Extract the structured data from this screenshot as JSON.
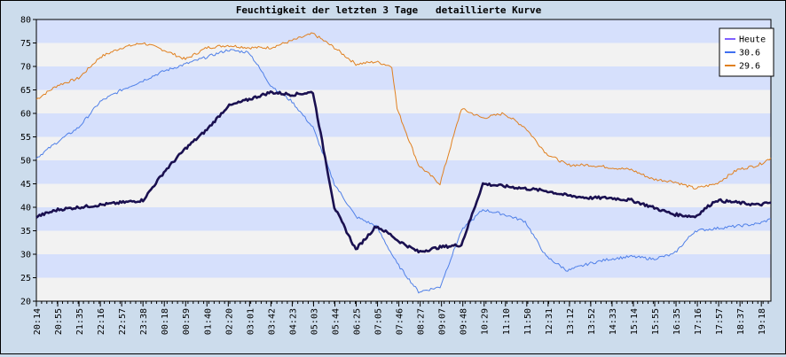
{
  "chart_data": {
    "type": "line",
    "title": "Feuchtigkeit der letzten 3 Tage   detaillierte Kurve",
    "xlabel": "",
    "ylabel": "",
    "ylim": [
      20,
      80
    ],
    "y_ticks": [
      20,
      25,
      30,
      35,
      40,
      45,
      50,
      55,
      60,
      65,
      70,
      75,
      80
    ],
    "x_ticks": [
      "20:14",
      "20:55",
      "21:35",
      "22:16",
      "22:57",
      "23:38",
      "00:18",
      "00:59",
      "01:40",
      "02:20",
      "03:01",
      "03:42",
      "04:23",
      "05:03",
      "05:44",
      "06:25",
      "07:05",
      "07:46",
      "08:27",
      "09:07",
      "09:48",
      "10:29",
      "11:10",
      "11:50",
      "12:31",
      "13:12",
      "13:52",
      "14:33",
      "15:14",
      "15:55",
      "16:35",
      "17:16",
      "17:57",
      "18:37",
      "19:18"
    ],
    "x_range_minutes": [
      0,
      1405
    ],
    "grid": true,
    "background_bands": [
      "#d6e0fc",
      "#f2f2f2"
    ],
    "legend_position": "top-right",
    "series": [
      {
        "name": "Heute",
        "color": "#1a1050",
        "legend_color": "#8060ff",
        "bold": true,
        "x": [
          0,
          41,
          81,
          122,
          163,
          204,
          244,
          285,
          326,
          366,
          407,
          448,
          489,
          529,
          570,
          611,
          650,
          680,
          690,
          731,
          772,
          813,
          854,
          894,
          935,
          975,
          1016,
          1057,
          1097,
          1138,
          1179,
          1219,
          1260,
          1300,
          1341,
          1381,
          1405
        ],
        "y": [
          38,
          39.5,
          40,
          40.5,
          41,
          41.5,
          47.5,
          52.5,
          56.5,
          61.5,
          63,
          64.5,
          64,
          64.5,
          40,
          31,
          36,
          34,
          33,
          30.5,
          31.5,
          32,
          45,
          44.5,
          44,
          43.5,
          42.5,
          42,
          42,
          41.5,
          40,
          38.5,
          38,
          41.5,
          41,
          40.5,
          41
        ]
      },
      {
        "name": "30.6",
        "color": "#5080e8",
        "legend_color": "#4070f0",
        "bold": false,
        "x": [
          0,
          41,
          81,
          122,
          163,
          204,
          244,
          285,
          326,
          366,
          407,
          448,
          489,
          529,
          570,
          611,
          650,
          680,
          690,
          731,
          772,
          813,
          854,
          894,
          935,
          975,
          1016,
          1057,
          1097,
          1138,
          1179,
          1219,
          1260,
          1300,
          1341,
          1381,
          1405
        ],
        "y": [
          50.5,
          54,
          57,
          62.5,
          65,
          67,
          69,
          70.5,
          72,
          73.5,
          73,
          66,
          62.5,
          57,
          45,
          38,
          36,
          30,
          28,
          22,
          23,
          35,
          39.5,
          38.5,
          37,
          29.5,
          26.5,
          28,
          29,
          29.5,
          29,
          30,
          35,
          35.5,
          36,
          36.5,
          37.5
        ]
      },
      {
        "name": "29.6",
        "color": "#e08020",
        "legend_color": "#e08020",
        "bold": false,
        "x": [
          0,
          41,
          81,
          122,
          163,
          204,
          244,
          285,
          326,
          366,
          407,
          448,
          489,
          529,
          570,
          611,
          650,
          680,
          690,
          731,
          772,
          813,
          854,
          894,
          935,
          975,
          1016,
          1057,
          1097,
          1138,
          1179,
          1219,
          1260,
          1300,
          1341,
          1381,
          1405
        ],
        "y": [
          63,
          66,
          67.5,
          72,
          74,
          75,
          73.5,
          71.5,
          74,
          74.5,
          74,
          74,
          75.5,
          77,
          74,
          70.5,
          71,
          70,
          61,
          49,
          45,
          61,
          59,
          60,
          57,
          51.5,
          49,
          49,
          48.5,
          48,
          46,
          45.5,
          44,
          45,
          48,
          49,
          50.5
        ]
      }
    ]
  }
}
